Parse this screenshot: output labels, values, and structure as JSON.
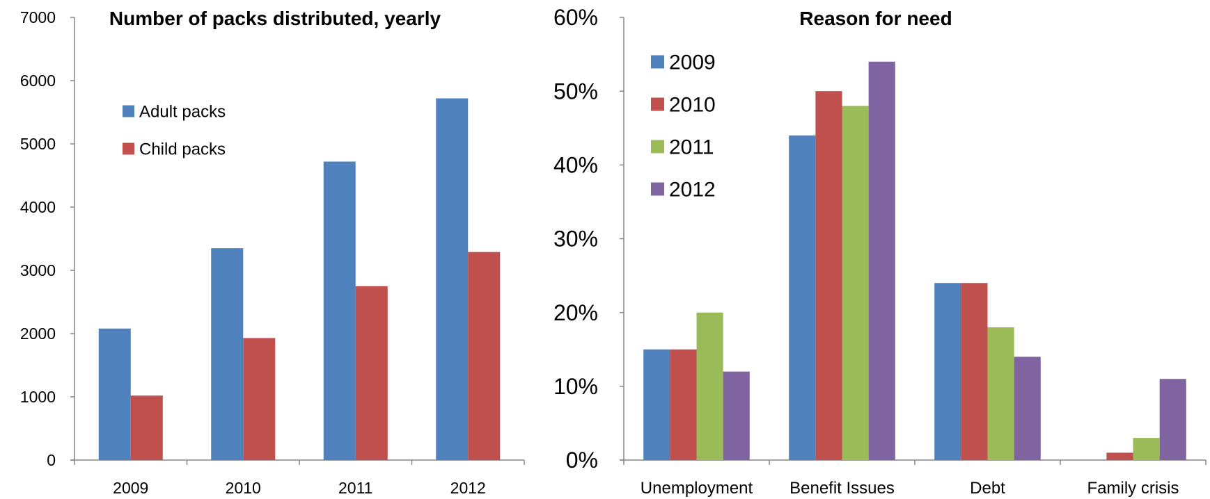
{
  "chart_data": [
    {
      "type": "bar",
      "title": "Number of packs distributed, yearly",
      "xlabel": "",
      "ylabel": "",
      "categories": [
        "2009",
        "2010",
        "2011",
        "2012"
      ],
      "series": [
        {
          "name": "Adult packs",
          "color": "#4F81BD",
          "values": [
            2080,
            3350,
            4720,
            5720
          ]
        },
        {
          "name": "Child packs",
          "color": "#C0504D",
          "values": [
            1020,
            1930,
            2750,
            3290
          ]
        }
      ],
      "ylim": [
        0,
        7000
      ],
      "yticks": [
        "0",
        "1000",
        "2000",
        "3000",
        "4000",
        "5000",
        "6000",
        "7000"
      ],
      "grid": false,
      "legend_position": "top-left"
    },
    {
      "type": "bar",
      "title": "Reason for need",
      "xlabel": "",
      "ylabel": "",
      "categories": [
        "Unemployment",
        "Benefit Issues",
        "Debt",
        "Family crisis"
      ],
      "series": [
        {
          "name": "2009",
          "color": "#4F81BD",
          "values": [
            15,
            44,
            24,
            0
          ]
        },
        {
          "name": "2010",
          "color": "#C0504D",
          "values": [
            15,
            50,
            24,
            1
          ]
        },
        {
          "name": "2011",
          "color": "#9BBB59",
          "values": [
            20,
            48,
            18,
            3
          ]
        },
        {
          "name": "2012",
          "color": "#8064A2",
          "values": [
            12,
            54,
            14,
            11
          ]
        }
      ],
      "ylim": [
        0,
        60
      ],
      "yticks": [
        "0%",
        "10%",
        "20%",
        "30%",
        "40%",
        "50%",
        "60%"
      ],
      "grid": false,
      "legend_position": "top-left"
    }
  ]
}
